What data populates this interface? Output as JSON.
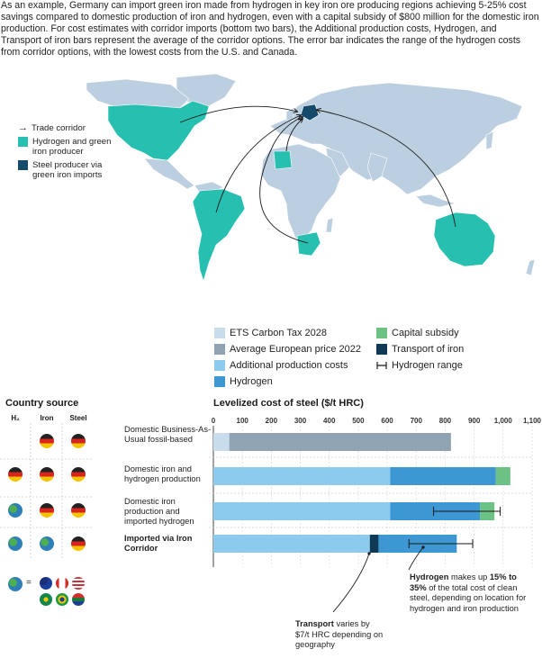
{
  "intro": "As an example, Germany can import green iron made from hydrogen in key iron ore producing regions achieving 5-25% cost savings compared to domestic production of iron and hydrogen, even with a capital subsidy of $800 million for the domestic iron production. For cost estimates with corridor imports (bottom two bars), the Additional production costs, Hydrogen, and Transport of iron bars represent the average of the corridor options. The error bar indicates the range of the hydrogen costs from corridor options, with the lowest costs from the U.S. and Canada.",
  "map_legend": {
    "trade_corridor": "Trade corridor",
    "hydrogen_producer": "Hydrogen and green iron producer",
    "steel_producer": "Steel producer via green iron imports"
  },
  "colors": {
    "ets": "#c9dceb",
    "avg_eu": "#8fa3b3",
    "additional": "#8ccbed",
    "hydrogen": "#3d97d3",
    "capital": "#6cc184",
    "transport": "#0e3a56",
    "teal": "#26bfb0",
    "land": "#bccfe0",
    "steel": "#154a6b"
  },
  "chart_legend": {
    "ets": "ETS Carbon Tax 2028",
    "avg_eu": "Average European price 2022",
    "additional": "Additional production costs",
    "hydrogen": "Hydrogen",
    "capital": "Capital subsidy",
    "transport": "Transport of iron",
    "range": "Hydrogen range"
  },
  "country_source": {
    "title": "Country source",
    "col_h2": "H₂",
    "col_iron": "Iron",
    "col_steel": "Steel",
    "globe_equals": "="
  },
  "chart_title": "Levelized cost of steel ($/t HRC)",
  "row_labels": [
    "Domestic Business-As-Usual fossil-based",
    "Domestic iron and hydrogen production",
    "Domestic iron production and imported hydrogen",
    "Imported via Iron Corridor"
  ],
  "chart_data": {
    "type": "bar",
    "orientation": "horizontal",
    "stacked": true,
    "title": "Levelized cost of steel ($/t HRC)",
    "xlim": [
      0,
      1100
    ],
    "xticks": [
      0,
      100,
      200,
      300,
      400,
      500,
      600,
      700,
      800,
      900,
      1000,
      1100
    ],
    "xtick_labels": [
      "0",
      "100",
      "200",
      "300",
      "400",
      "500",
      "600",
      "700",
      "800",
      "900",
      "1,000",
      "1,100"
    ],
    "categories": [
      "Domestic Business-As-Usual fossil-based",
      "Domestic iron and hydrogen production",
      "Domestic iron production and imported hydrogen",
      "Imported via Iron Corridor"
    ],
    "series": [
      {
        "name": "ETS Carbon Tax 2028",
        "key": "ets",
        "values": [
          55,
          0,
          0,
          0
        ]
      },
      {
        "name": "Average European price 2022",
        "key": "avg_eu",
        "values": [
          765,
          0,
          0,
          0
        ]
      },
      {
        "name": "Additional production costs",
        "key": "additional",
        "values": [
          0,
          610,
          610,
          540
        ]
      },
      {
        "name": "Transport of iron",
        "key": "transport",
        "values": [
          0,
          0,
          0,
          30
        ]
      },
      {
        "name": "Hydrogen",
        "key": "hydrogen",
        "values": [
          0,
          365,
          310,
          270
        ]
      },
      {
        "name": "Capital subsidy",
        "key": "capital",
        "values": [
          0,
          50,
          50,
          0
        ]
      }
    ],
    "hydrogen_range": [
      null,
      null,
      [
        760,
        990
      ],
      [
        675,
        895
      ]
    ]
  },
  "annotations": {
    "hydrogen": {
      "bold": "Hydrogen",
      "mid": " makes up ",
      "bold2": "15% to 35%",
      "rest": " of the total cost of clean steel, depending on location for hydrogen and iron production"
    },
    "transport": {
      "bold": "Transport",
      "rest": " varies by $7/t HRC depending on geography"
    }
  }
}
